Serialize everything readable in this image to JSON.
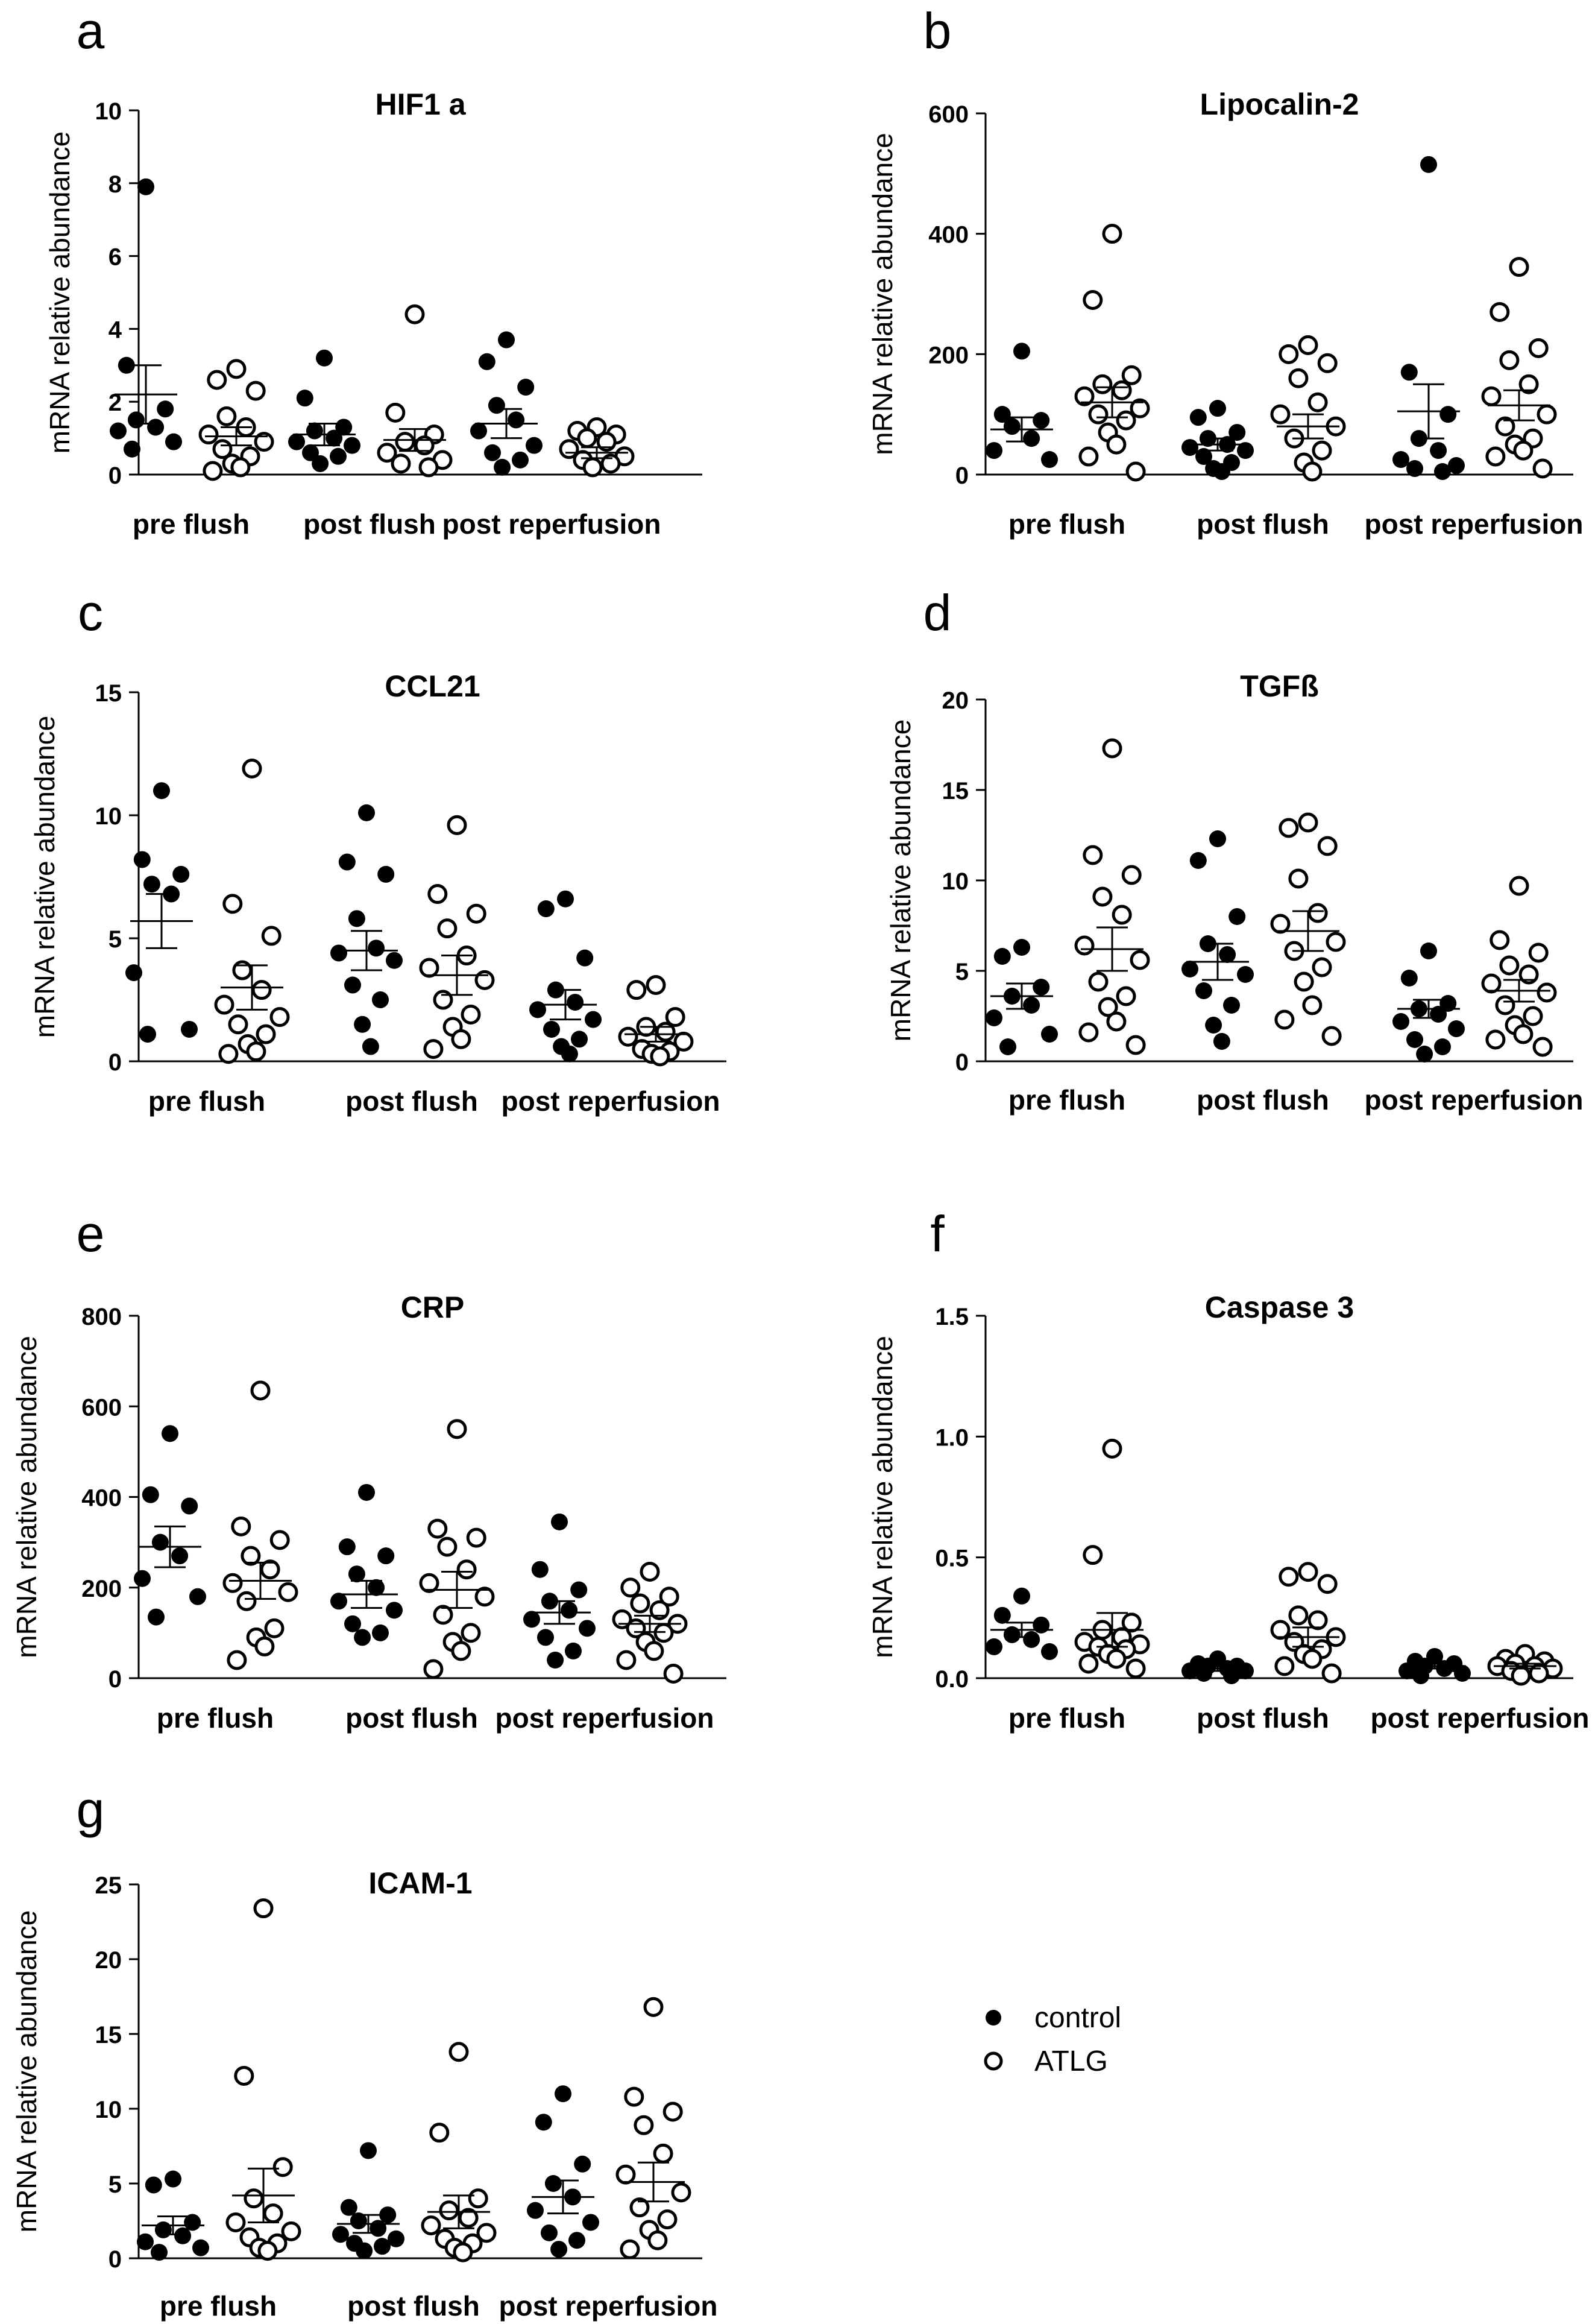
{
  "y_axis_label": "mRNA relative abundance",
  "legend": {
    "control": "control",
    "atlg": "ATLG"
  },
  "chart_data": [
    {
      "letter": "a",
      "title": "HIF1 a",
      "type": "scatter",
      "ylim": [
        0,
        10
      ],
      "ticks": [
        "0",
        "2",
        "4",
        "6",
        "8",
        "10"
      ],
      "categories": [
        "pre flush",
        "post flush",
        "post reperfusion"
      ],
      "ylabel": "mRNA relative abundance",
      "series": [
        {
          "name": "control",
          "groups": [
            {
              "points": [
                7.9,
                3.0,
                1.8,
                1.5,
                1.3,
                1.2,
                0.9,
                0.7
              ],
              "mean": 2.2,
              "sem": 0.8
            },
            {
              "points": [
                3.2,
                2.1,
                1.3,
                1.2,
                1.0,
                0.9,
                0.8,
                0.6,
                0.5,
                0.3
              ],
              "mean": 1.1,
              "sem": 0.3
            },
            {
              "points": [
                3.7,
                3.1,
                2.4,
                1.9,
                1.5,
                1.2,
                0.8,
                0.6,
                0.4,
                0.2
              ],
              "mean": 1.4,
              "sem": 0.4
            }
          ]
        },
        {
          "name": "ATLG",
          "groups": [
            {
              "points": [
                2.9,
                2.6,
                2.3,
                1.6,
                1.3,
                1.1,
                0.9,
                0.7,
                0.5,
                0.3,
                0.2,
                0.1
              ],
              "mean": 1.05,
              "sem": 0.25
            },
            {
              "points": [
                4.4,
                1.7,
                1.1,
                0.9,
                0.8,
                0.6,
                0.4,
                0.3,
                0.2
              ],
              "mean": 0.95,
              "sem": 0.3
            },
            {
              "points": [
                1.3,
                1.2,
                1.1,
                1.0,
                0.9,
                0.7,
                0.5,
                0.4,
                0.3,
                0.2
              ],
              "mean": 0.6,
              "sem": 0.15
            }
          ]
        }
      ]
    },
    {
      "letter": "b",
      "title": "Lipocalin-2",
      "type": "scatter",
      "ylim": [
        0,
        600
      ],
      "ticks": [
        "0",
        "200",
        "400",
        "600"
      ],
      "categories": [
        "pre flush",
        "post flush",
        "post reperfusion"
      ],
      "ylabel": "mRNA relative abundance",
      "series": [
        {
          "name": "control",
          "groups": [
            {
              "points": [
                205,
                100,
                90,
                80,
                60,
                40,
                25
              ],
              "mean": 75,
              "sem": 20
            },
            {
              "points": [
                110,
                95,
                70,
                60,
                50,
                45,
                40,
                30,
                20,
                10,
                5
              ],
              "mean": 50,
              "sem": 10
            },
            {
              "points": [
                515,
                170,
                100,
                60,
                40,
                25,
                15,
                10,
                5
              ],
              "mean": 105,
              "sem": 45
            }
          ]
        },
        {
          "name": "ATLG",
          "groups": [
            {
              "points": [
                400,
                290,
                165,
                150,
                140,
                130,
                110,
                100,
                90,
                70,
                50,
                30,
                5
              ],
              "mean": 120,
              "sem": 25
            },
            {
              "points": [
                215,
                200,
                185,
                160,
                120,
                100,
                80,
                60,
                40,
                20,
                5
              ],
              "mean": 80,
              "sem": 20
            },
            {
              "points": [
                345,
                270,
                210,
                190,
                150,
                130,
                100,
                80,
                60,
                50,
                40,
                30,
                10
              ],
              "mean": 115,
              "sem": 25
            }
          ]
        }
      ]
    },
    {
      "letter": "c",
      "title": "CCL21",
      "type": "scatter",
      "ylim": [
        0,
        15
      ],
      "ticks": [
        "0",
        "5",
        "10",
        "15"
      ],
      "categories": [
        "pre flush",
        "post flush",
        "post reperfusion"
      ],
      "ylabel": "mRNA relative abundance",
      "series": [
        {
          "name": "control",
          "groups": [
            {
              "points": [
                11.0,
                8.2,
                7.6,
                7.2,
                6.8,
                3.6,
                1.3,
                1.1
              ],
              "mean": 5.7,
              "sem": 1.1
            },
            {
              "points": [
                10.1,
                8.1,
                7.6,
                5.8,
                4.6,
                4.4,
                4.1,
                3.1,
                2.5,
                1.5,
                0.6
              ],
              "mean": 4.5,
              "sem": 0.8
            },
            {
              "points": [
                6.6,
                6.2,
                4.2,
                2.9,
                2.4,
                2.1,
                1.7,
                1.3,
                0.9,
                0.6,
                0.3
              ],
              "mean": 2.3,
              "sem": 0.6
            }
          ]
        },
        {
          "name": "ATLG",
          "groups": [
            {
              "points": [
                11.9,
                6.4,
                5.1,
                3.7,
                2.9,
                2.3,
                1.8,
                1.5,
                1.1,
                0.7,
                0.4,
                0.3
              ],
              "mean": 3.0,
              "sem": 0.9
            },
            {
              "points": [
                9.6,
                6.8,
                6.0,
                5.4,
                4.3,
                3.8,
                3.3,
                2.5,
                1.9,
                1.4,
                0.9,
                0.5
              ],
              "mean": 3.5,
              "sem": 0.8
            },
            {
              "points": [
                3.1,
                2.9,
                1.8,
                1.4,
                1.2,
                1.0,
                0.8,
                0.5,
                0.4,
                0.3,
                0.2
              ],
              "mean": 1.1,
              "sem": 0.3
            }
          ]
        }
      ]
    },
    {
      "letter": "d",
      "title": "TGFß",
      "type": "scatter",
      "ylim": [
        0,
        20
      ],
      "ticks": [
        "0",
        "5",
        "10",
        "15",
        "20"
      ],
      "categories": [
        "pre flush",
        "post flush",
        "post reperfusion"
      ],
      "ylabel": "mRNA relative abundance",
      "series": [
        {
          "name": "control",
          "groups": [
            {
              "points": [
                6.3,
                5.8,
                4.1,
                3.6,
                3.1,
                2.4,
                1.5,
                0.8
              ],
              "mean": 3.6,
              "sem": 0.7
            },
            {
              "points": [
                12.3,
                11.1,
                8.0,
                6.5,
                5.9,
                5.1,
                4.8,
                3.9,
                3.1,
                2.0,
                1.1
              ],
              "mean": 5.5,
              "sem": 1.0
            },
            {
              "points": [
                6.1,
                4.6,
                3.2,
                2.9,
                2.6,
                2.2,
                1.8,
                1.2,
                0.8,
                0.4
              ],
              "mean": 2.9,
              "sem": 0.5
            }
          ]
        },
        {
          "name": "ATLG",
          "groups": [
            {
              "points": [
                17.3,
                11.4,
                10.3,
                9.1,
                8.1,
                6.4,
                5.6,
                4.4,
                3.6,
                3.0,
                2.2,
                1.6,
                0.9
              ],
              "mean": 6.2,
              "sem": 1.2
            },
            {
              "points": [
                13.2,
                12.9,
                11.9,
                10.1,
                8.2,
                7.6,
                6.6,
                6.1,
                5.2,
                4.4,
                3.1,
                2.3,
                1.4
              ],
              "mean": 7.2,
              "sem": 1.1
            },
            {
              "points": [
                9.7,
                6.7,
                6.0,
                5.3,
                4.8,
                4.3,
                3.8,
                3.1,
                2.5,
                2.0,
                1.5,
                1.2,
                0.8
              ],
              "mean": 3.9,
              "sem": 0.6
            }
          ]
        }
      ]
    },
    {
      "letter": "e",
      "title": "CRP",
      "type": "scatter",
      "ylim": [
        0,
        800
      ],
      "ticks": [
        "0",
        "200",
        "400",
        "600",
        "800"
      ],
      "categories": [
        "pre flush",
        "post flush",
        "post reperfusion"
      ],
      "ylabel": "mRNA relative abundance",
      "series": [
        {
          "name": "control",
          "groups": [
            {
              "points": [
                540,
                405,
                380,
                300,
                270,
                220,
                180,
                135
              ],
              "mean": 290,
              "sem": 45
            },
            {
              "points": [
                410,
                290,
                270,
                230,
                200,
                170,
                150,
                120,
                100,
                90
              ],
              "mean": 185,
              "sem": 30
            },
            {
              "points": [
                345,
                240,
                195,
                170,
                150,
                130,
                110,
                90,
                60,
                40
              ],
              "mean": 145,
              "sem": 25
            }
          ]
        },
        {
          "name": "ATLG",
          "groups": [
            {
              "points": [
                635,
                335,
                305,
                270,
                240,
                210,
                190,
                170,
                110,
                90,
                70,
                40
              ],
              "mean": 215,
              "sem": 40
            },
            {
              "points": [
                550,
                330,
                310,
                290,
                240,
                210,
                180,
                140,
                100,
                80,
                60,
                20
              ],
              "mean": 195,
              "sem": 40
            },
            {
              "points": [
                235,
                200,
                180,
                165,
                150,
                130,
                120,
                110,
                100,
                80,
                60,
                40,
                10
              ],
              "mean": 120,
              "sem": 18
            }
          ]
        }
      ]
    },
    {
      "letter": "f",
      "title": "Caspase 3",
      "type": "scatter",
      "ylim": [
        0,
        1.5
      ],
      "ticks": [
        "0.0",
        "0.5",
        "1.0",
        "1.5"
      ],
      "categories": [
        "pre flush",
        "post flush",
        "post reperfusion"
      ],
      "ylabel": "mRNA relative abundance",
      "series": [
        {
          "name": "control",
          "groups": [
            {
              "points": [
                0.34,
                0.26,
                0.22,
                0.18,
                0.16,
                0.13,
                0.11
              ],
              "mean": 0.2,
              "sem": 0.03
            },
            {
              "points": [
                0.08,
                0.06,
                0.05,
                0.05,
                0.04,
                0.03,
                0.03,
                0.02,
                0.01
              ],
              "mean": 0.04,
              "sem": 0.01
            },
            {
              "points": [
                0.09,
                0.07,
                0.06,
                0.05,
                0.04,
                0.03,
                0.02,
                0.01
              ],
              "mean": 0.05,
              "sem": 0.01
            }
          ]
        },
        {
          "name": "ATLG",
          "groups": [
            {
              "points": [
                0.95,
                0.51,
                0.23,
                0.2,
                0.17,
                0.15,
                0.14,
                0.13,
                0.12,
                0.1,
                0.08,
                0.06,
                0.04
              ],
              "mean": 0.2,
              "sem": 0.07
            },
            {
              "points": [
                0.44,
                0.42,
                0.39,
                0.26,
                0.24,
                0.2,
                0.17,
                0.15,
                0.12,
                0.1,
                0.08,
                0.05,
                0.02
              ],
              "mean": 0.17,
              "sem": 0.04
            },
            {
              "points": [
                0.1,
                0.08,
                0.07,
                0.06,
                0.05,
                0.05,
                0.04,
                0.03,
                0.02,
                0.01
              ],
              "mean": 0.05,
              "sem": 0.01
            }
          ]
        }
      ]
    },
    {
      "letter": "g",
      "title": "ICAM-1",
      "type": "scatter",
      "ylim": [
        0,
        25
      ],
      "ticks": [
        "0",
        "5",
        "10",
        "15",
        "20",
        "25"
      ],
      "categories": [
        "pre flush",
        "post flush",
        "post reperfusion"
      ],
      "ylabel": "mRNA relative abundance",
      "series": [
        {
          "name": "control",
          "groups": [
            {
              "points": [
                5.3,
                4.9,
                2.4,
                1.9,
                1.5,
                1.1,
                0.7,
                0.4
              ],
              "mean": 2.2,
              "sem": 0.6
            },
            {
              "points": [
                7.2,
                3.4,
                2.9,
                2.5,
                2.0,
                1.6,
                1.3,
                1.0,
                0.8,
                0.5
              ],
              "mean": 2.3,
              "sem": 0.6
            },
            {
              "points": [
                11.0,
                9.1,
                6.3,
                5.0,
                4.1,
                3.2,
                2.4,
                1.7,
                1.2,
                0.6
              ],
              "mean": 4.1,
              "sem": 1.1
            }
          ]
        },
        {
          "name": "ATLG",
          "groups": [
            {
              "points": [
                23.4,
                12.2,
                6.1,
                4.0,
                3.0,
                2.4,
                1.8,
                1.4,
                1.0,
                0.7,
                0.5
              ],
              "mean": 4.2,
              "sem": 1.8
            },
            {
              "points": [
                13.8,
                8.4,
                4.0,
                3.2,
                2.7,
                2.2,
                1.7,
                1.3,
                1.0,
                0.7,
                0.4
              ],
              "mean": 3.1,
              "sem": 1.1
            },
            {
              "points": [
                16.8,
                10.8,
                9.8,
                8.9,
                7.0,
                5.6,
                4.4,
                3.4,
                2.6,
                1.9,
                1.2,
                0.6
              ],
              "mean": 5.1,
              "sem": 1.3
            }
          ]
        }
      ]
    }
  ]
}
